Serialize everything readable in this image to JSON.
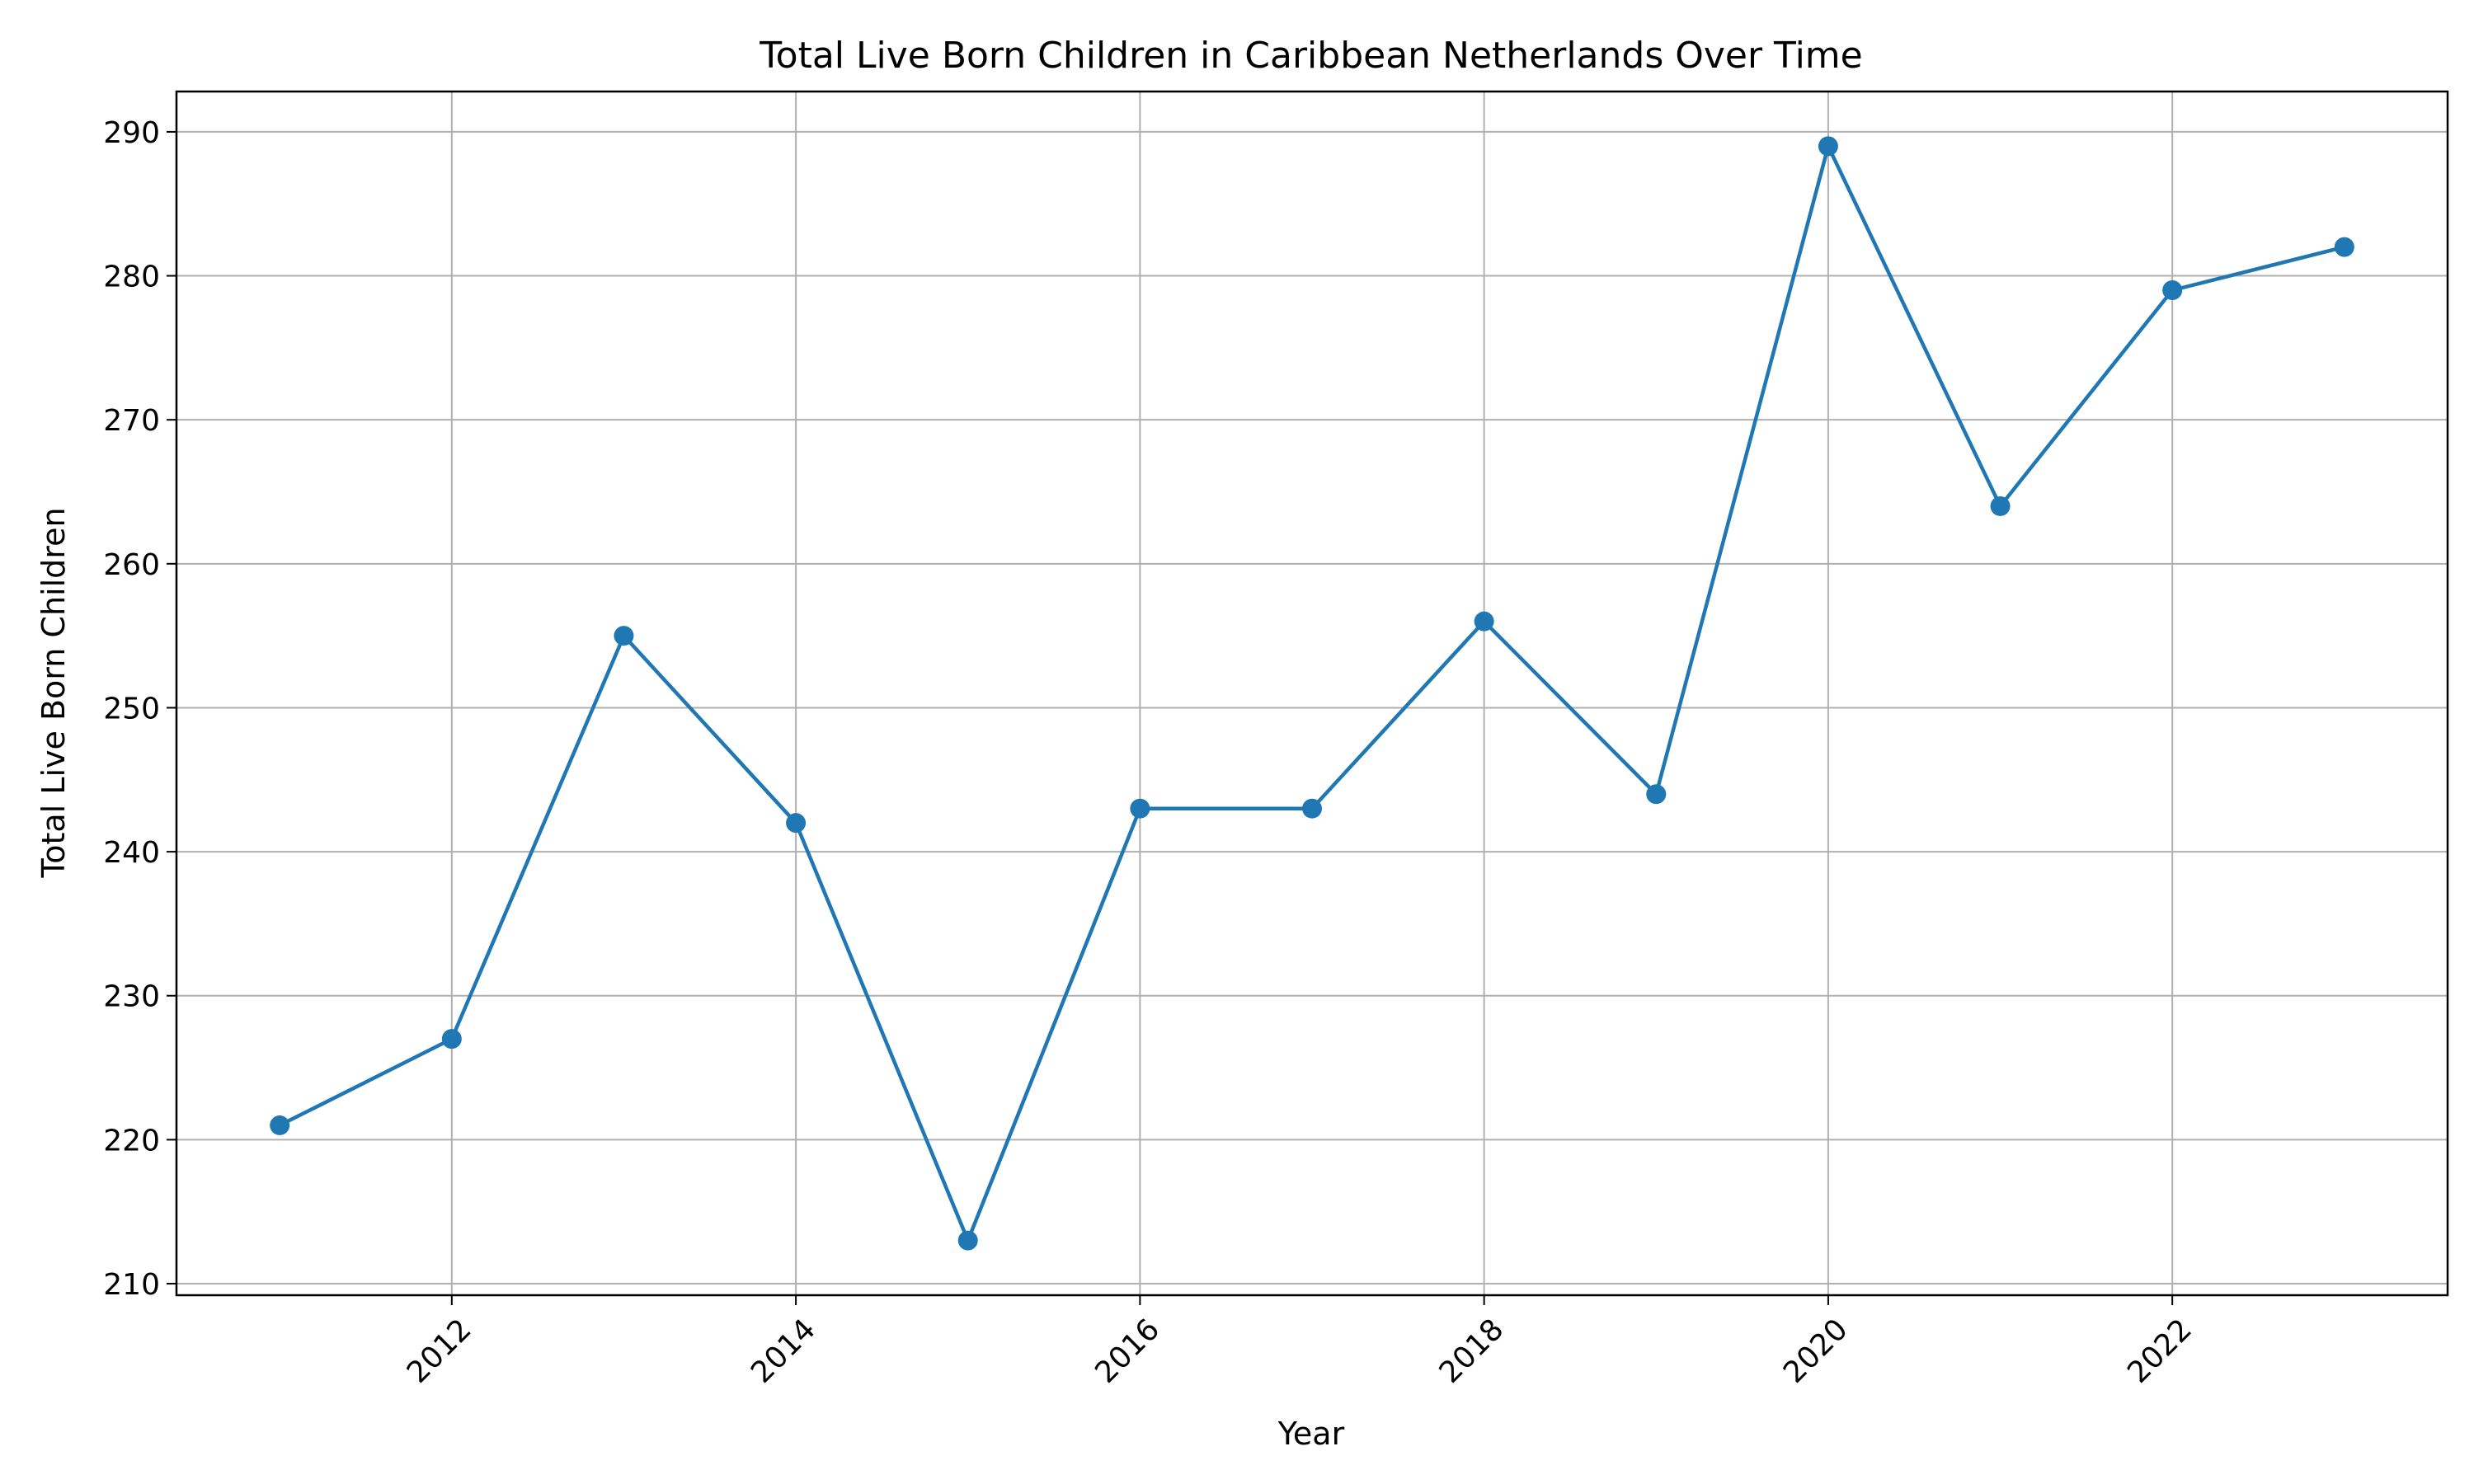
{
  "chart_data": {
    "type": "line",
    "title": "Total Live Born Children in Caribbean Netherlands Over Time",
    "xlabel": "Year",
    "ylabel": "Total Live Born Children",
    "x": [
      2011,
      2012,
      2013,
      2014,
      2015,
      2016,
      2017,
      2018,
      2019,
      2020,
      2021,
      2022,
      2023
    ],
    "series": [
      {
        "values": [
          221,
          227,
          255,
          242,
          213,
          243,
          243,
          256,
          244,
          289,
          264,
          279,
          282
        ],
        "color": "#1f77b4",
        "marker": "circle"
      }
    ],
    "xlim": [
      2010.4,
      2023.6
    ],
    "ylim": [
      209.2,
      292.8
    ],
    "x_ticks": [
      2012,
      2014,
      2016,
      2018,
      2020,
      2022
    ],
    "x_tick_labels": [
      "2012",
      "2014",
      "2016",
      "2018",
      "2020",
      "2022"
    ],
    "x_tick_rotation_deg": 45,
    "y_ticks": [
      210,
      220,
      230,
      240,
      250,
      260,
      270,
      280,
      290
    ],
    "y_tick_labels": [
      "210",
      "220",
      "230",
      "240",
      "250",
      "260",
      "270",
      "280",
      "290"
    ],
    "grid": true,
    "grid_color": "#b0b0b0",
    "legend": null
  }
}
